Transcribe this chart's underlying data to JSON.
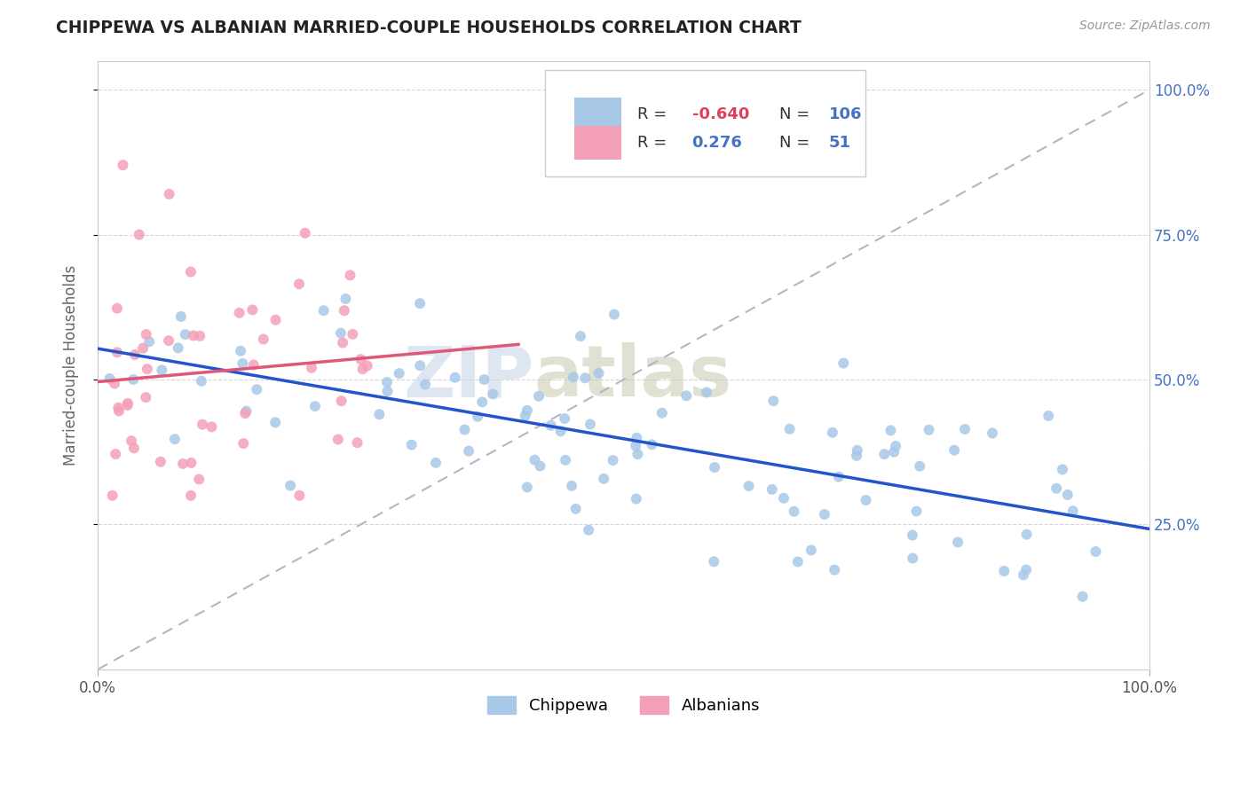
{
  "title": "CHIPPEWA VS ALBANIAN MARRIED-COUPLE HOUSEHOLDS CORRELATION CHART",
  "source": "Source: ZipAtlas.com",
  "ylabel": "Married-couple Households",
  "chippewa_color": "#a8c8e8",
  "albanians_color": "#f4a0b8",
  "chippewa_line_color": "#2255cc",
  "albanians_line_color": "#e05878",
  "diagonal_color": "#b0b8c8",
  "R_chippewa": -0.64,
  "N_chippewa": 106,
  "R_albanians": 0.276,
  "N_albanians": 51,
  "watermark_zip": "ZIP",
  "watermark_atlas": "atlas",
  "background_color": "#ffffff",
  "legend_R1": "R = ",
  "legend_V1": "-0.640",
  "legend_N1_label": "N = ",
  "legend_N1": "106",
  "legend_R2": "R =  ",
  "legend_V2": "0.276",
  "legend_N2_label": "N =  ",
  "legend_N2": "51",
  "legend_color_val": "#4472c4",
  "legend_color_neg": "#e04060",
  "ytick_labels": [
    "25.0%",
    "50.0%",
    "75.0%",
    "100.0%"
  ],
  "ytick_vals": [
    0.25,
    0.5,
    0.75,
    1.0
  ],
  "xtick_labels": [
    "0.0%",
    "100.0%"
  ],
  "xtick_vals": [
    0.0,
    1.0
  ]
}
